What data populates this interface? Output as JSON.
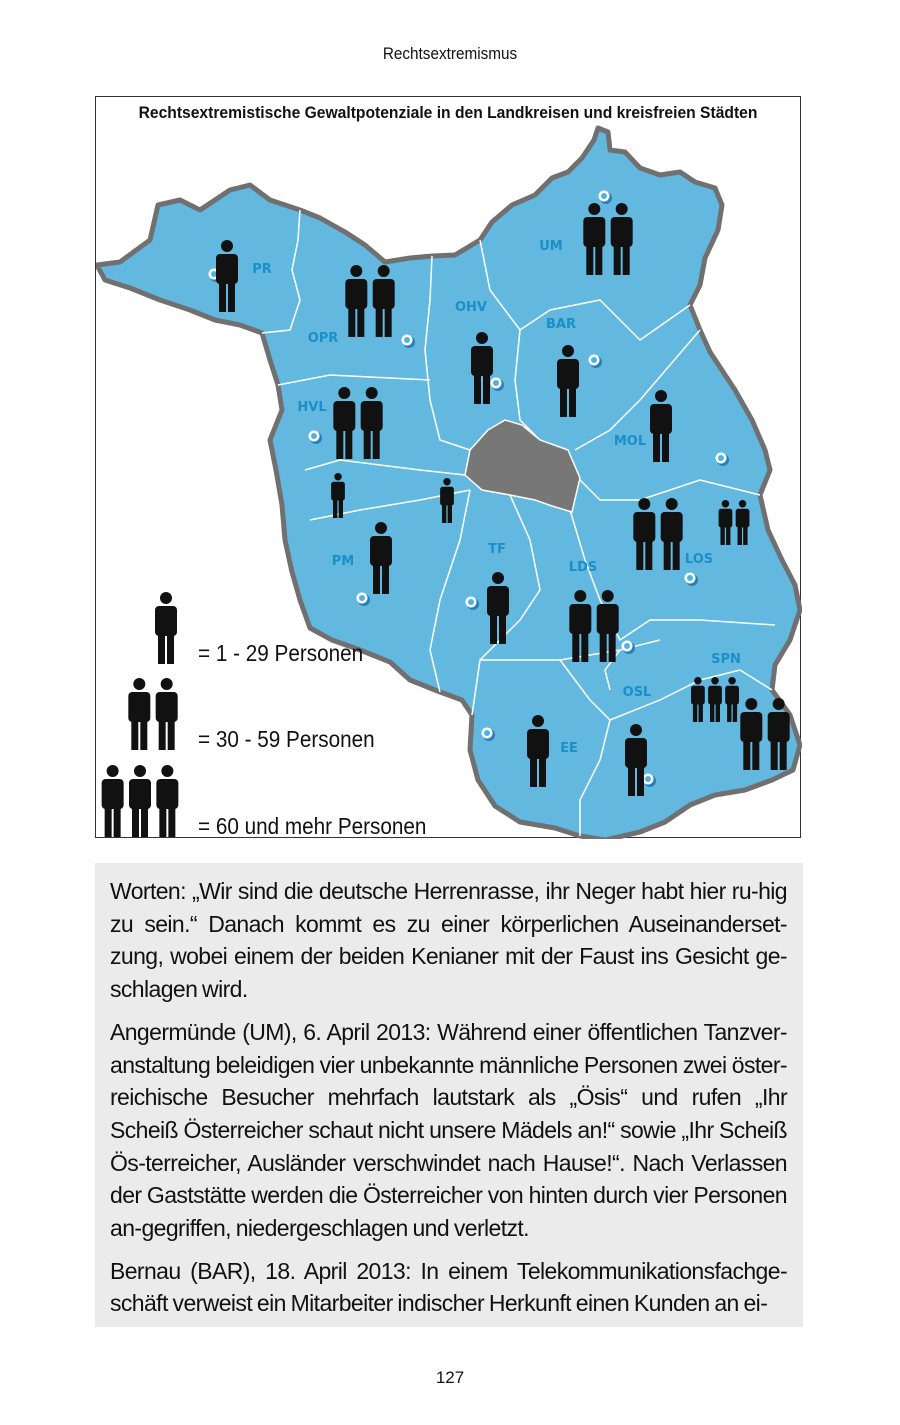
{
  "header": "Rechtsextremismus",
  "map": {
    "title": "Rechtsextremistische Gewaltpotenziale in den Landkreisen und kreisfreien Städten",
    "colors": {
      "land": "#63b8e0",
      "border": "#707070",
      "berlin": "#777777",
      "label": "#1a8fc8",
      "figure": "#111111"
    },
    "regions": [
      {
        "code": "PR",
        "figures": 1
      },
      {
        "code": "OPR",
        "figures": 2
      },
      {
        "code": "OHV",
        "figures": 1
      },
      {
        "code": "UM",
        "figures": 2
      },
      {
        "code": "BAR",
        "figures": 1
      },
      {
        "code": "HVL",
        "figures": 2
      },
      {
        "code": "MOL",
        "figures": 1
      },
      {
        "code": "PM",
        "figures": 1
      },
      {
        "code": "TF",
        "figures": 1
      },
      {
        "code": "LDS",
        "figures": 2
      },
      {
        "code": "LOS",
        "figures": 2
      },
      {
        "code": "SPN",
        "figures": 2
      },
      {
        "code": "OSL",
        "figures": 1
      },
      {
        "code": "EE",
        "figures": 1
      }
    ],
    "cities": [
      {
        "figures": 1
      },
      {
        "figures": 1
      },
      {
        "figures": 2
      },
      {
        "figures": 3
      }
    ],
    "legend": [
      {
        "figures": 1,
        "label": "= 1 - 29 Personen"
      },
      {
        "figures": 2,
        "label": "= 30 - 59 Personen"
      },
      {
        "figures": 3,
        "label": "= 60 und mehr Personen"
      }
    ]
  },
  "body": {
    "paragraphs": [
      "Worten: „Wir sind die deutsche Herrenrasse, ihr Neger habt hier ru-hig zu sein.“ Danach kommt es zu einer körperlichen Auseinanderset-zung, wobei einem der beiden Kenianer mit der Faust ins Gesicht ge-schlagen wird.",
      "Angermünde (UM), 6. April 2013: Während einer öffentlichen Tanzver-anstaltung beleidigen vier unbekannte männliche Personen zwei öster-reichische Besucher mehrfach lautstark als „Ösis“ und rufen „Ihr Scheiß Österreicher schaut nicht unsere Mädels an!“ sowie „Ihr Scheiß Ös-terreicher, Ausländer verschwindet nach Hause!“. Nach Verlassen der Gaststätte werden die Österreicher von hinten durch vier Personen an-gegriffen, niedergeschlagen und verletzt.",
      "Bernau (BAR), 18. April 2013: In einem Telekommunikationsfachge-schäft verweist ein Mitarbeiter indischer Herkunft einen Kunden an ei-"
    ]
  },
  "page_number": "127"
}
